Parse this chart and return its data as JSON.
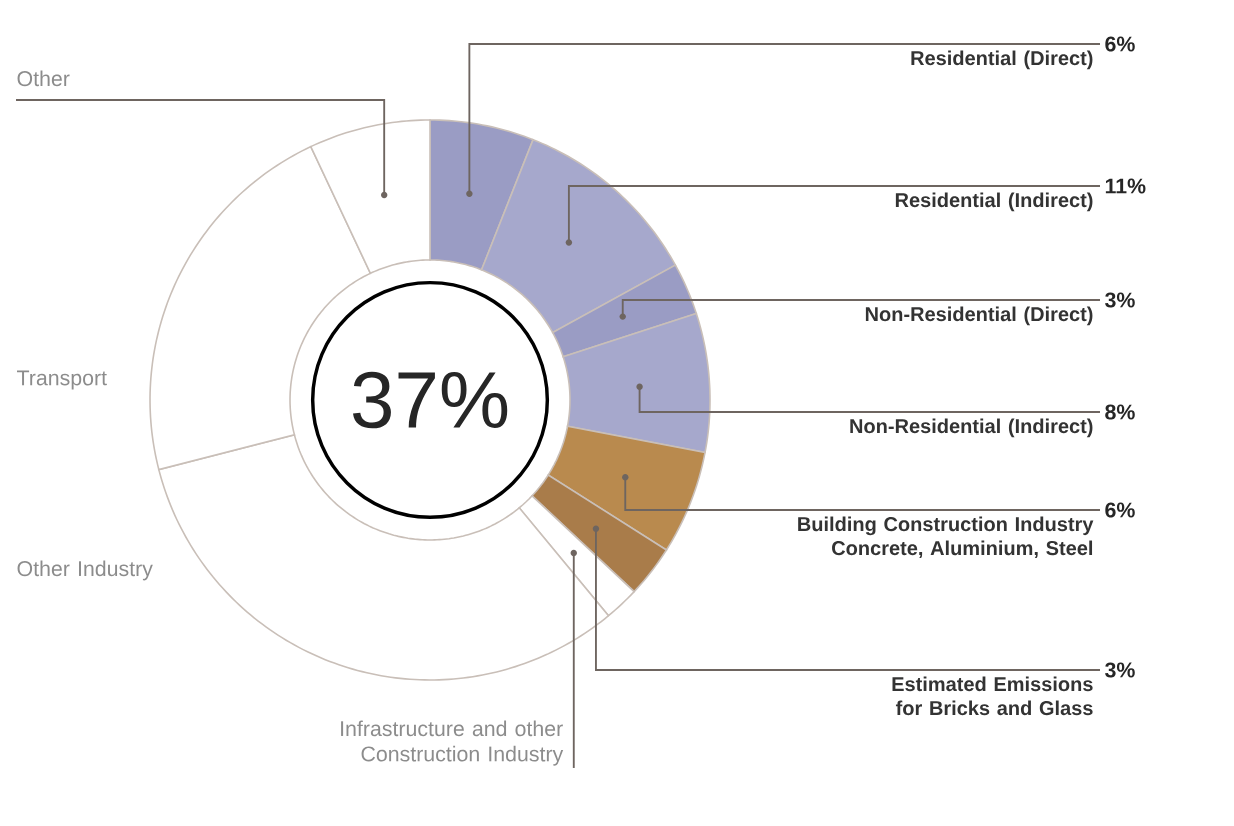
{
  "chart_data": {
    "type": "donut",
    "categories": [
      "Residential (Direct)",
      "Residential (Indirect)",
      "Non-Residential (Direct)",
      "Non-Residential (Indirect)",
      "Building Construction Industry Concrete, Aluminium, Steel",
      "Estimated Emissions for Bricks and Glass",
      "Infrastructure and other Construction Industry",
      "Other Industry",
      "Transport",
      "Other"
    ],
    "values": [
      6,
      11,
      3,
      8,
      6,
      3,
      2,
      32,
      22,
      7
    ],
    "colors": [
      "#9a9cc4",
      "#a6a8cc",
      "#9a9cc4",
      "#a6a8cc",
      "#b98a4e",
      "#a97c4a",
      "#ffffff",
      "#ffffff",
      "#ffffff",
      "#ffffff"
    ],
    "value_labels": [
      "6%",
      "11%",
      "3%",
      "8%",
      "6%",
      "3%",
      null,
      null,
      null,
      null
    ],
    "annotations": [
      "37%"
    ]
  }
}
